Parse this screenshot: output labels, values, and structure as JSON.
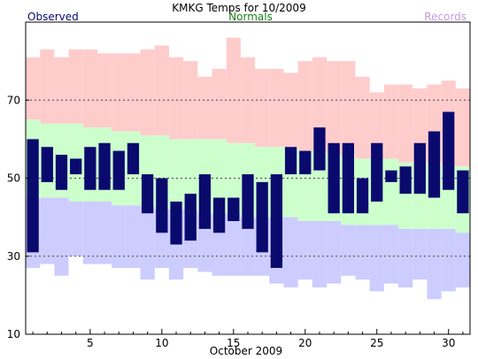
{
  "chart_data": {
    "type": "bar",
    "title": "KMKG Temps for 10/2009",
    "xlabel": "October 2009",
    "ylabel": "",
    "xlim": [
      0.5,
      31.5
    ],
    "ylim": [
      10,
      90
    ],
    "grid_y": [
      30,
      50,
      70
    ],
    "y_ticks": [
      10,
      30,
      50,
      70
    ],
    "x_ticks": [
      5,
      10,
      15,
      20,
      25,
      30
    ],
    "legend": [
      {
        "name": "Observed",
        "color": "#0a0a6e",
        "placement": "top-left"
      },
      {
        "name": "Normals",
        "color": "#1a7f1a",
        "placement": "top-center"
      },
      {
        "name": "Records",
        "color": "#c39be0",
        "placement": "top-right"
      }
    ],
    "colors": {
      "observed": "#0a0a6e",
      "record_high_band": "#ffcccc",
      "normal_band": "#ccffcc",
      "record_low_band": "#ccccff",
      "grid": "#444444"
    },
    "days": [
      1,
      2,
      3,
      4,
      5,
      6,
      7,
      8,
      9,
      10,
      11,
      12,
      13,
      14,
      15,
      16,
      17,
      18,
      19,
      20,
      21,
      22,
      23,
      24,
      25,
      26,
      27,
      28,
      29,
      30,
      31
    ],
    "record_high": [
      81,
      83,
      81,
      83,
      83,
      82,
      82,
      82,
      83,
      84,
      81,
      80,
      76,
      78,
      86,
      81,
      78,
      78,
      77,
      80,
      81,
      80,
      80,
      76,
      72,
      74,
      74,
      73,
      74,
      75,
      73
    ],
    "normal_high": [
      65,
      64,
      64,
      64,
      63,
      63,
      62,
      62,
      61,
      61,
      60,
      60,
      60,
      60,
      59,
      59,
      58,
      58,
      58,
      57,
      57,
      56,
      56,
      55,
      55,
      55,
      54,
      54,
      54,
      53,
      53
    ],
    "normal_low": [
      45,
      45,
      45,
      44,
      44,
      44,
      43,
      43,
      43,
      42,
      42,
      42,
      41,
      41,
      41,
      40,
      40,
      40,
      40,
      39,
      39,
      39,
      38,
      38,
      38,
      38,
      37,
      37,
      37,
      37,
      36
    ],
    "record_low": [
      27,
      28,
      25,
      30,
      28,
      28,
      27,
      27,
      24,
      27,
      24,
      27,
      26,
      25,
      25,
      25,
      25,
      23,
      22,
      24,
      22,
      23,
      25,
      24,
      21,
      23,
      22,
      24,
      19,
      21,
      22
    ],
    "observed_high": [
      60,
      58,
      56,
      55,
      58,
      59,
      57,
      59,
      51,
      50,
      44,
      46,
      51,
      45,
      45,
      51,
      49,
      51,
      58,
      57,
      63,
      59,
      59,
      50,
      59,
      52,
      53,
      59,
      62,
      67,
      52
    ],
    "observed_low": [
      31,
      49,
      47,
      51,
      47,
      47,
      47,
      51,
      41,
      36,
      33,
      34,
      37,
      36,
      39,
      37,
      31,
      27,
      51,
      51,
      52,
      41,
      41,
      41,
      44,
      49,
      46,
      46,
      45,
      47,
      41
    ]
  }
}
